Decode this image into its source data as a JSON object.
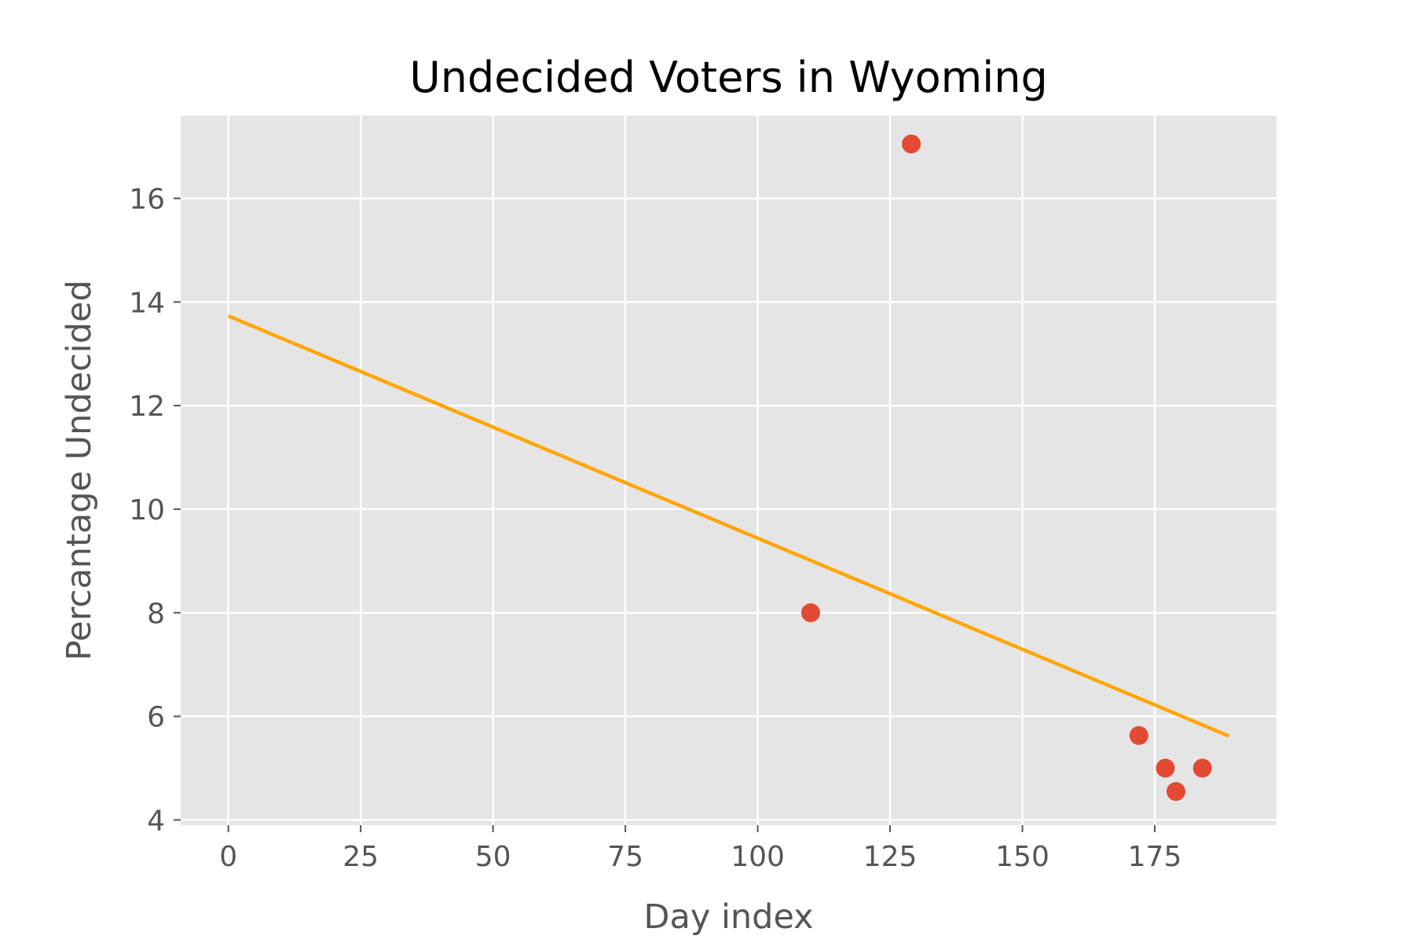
{
  "chart_data": {
    "type": "scatter",
    "title": "Undecided Voters in Wyoming",
    "xlabel": "Day index",
    "ylabel": "Percantage Undecided",
    "xlim": [
      -9,
      198
    ],
    "ylim": [
      3.9,
      17.6
    ],
    "xticks": [
      0,
      25,
      50,
      75,
      100,
      125,
      150,
      175
    ],
    "yticks": [
      4,
      6,
      8,
      10,
      12,
      14,
      16
    ],
    "grid": true,
    "series": [
      {
        "type": "scatter",
        "color": "#E24A33",
        "points": [
          {
            "x": 110,
            "y": 8.0
          },
          {
            "x": 129,
            "y": 17.05
          },
          {
            "x": 172,
            "y": 5.63
          },
          {
            "x": 177,
            "y": 5.0
          },
          {
            "x": 179,
            "y": 4.55
          },
          {
            "x": 184,
            "y": 5.0
          }
        ]
      },
      {
        "type": "line",
        "color": "#FFA500",
        "points": [
          {
            "x": 0,
            "y": 13.73
          },
          {
            "x": 189,
            "y": 5.62
          }
        ]
      }
    ],
    "colors": {
      "plot_background": "#E5E5E5",
      "grid": "#FFFFFF",
      "tick": "#555555"
    }
  }
}
